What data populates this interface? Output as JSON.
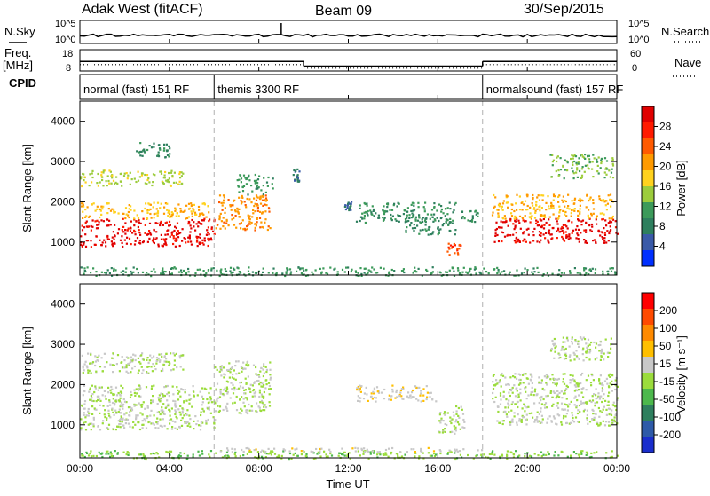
{
  "header": {
    "radar": "Adak West (fitACF)",
    "beam": "Beam 09",
    "date": "30/Sep/2015"
  },
  "side_labels": {
    "nsky": "N.Sky",
    "nsearch": "N.Search",
    "freq": "Freq.",
    "mhz": "[MHz]",
    "nave": "Nave",
    "cpid": "CPID"
  },
  "small_ticks": {
    "noise_left": [
      "10^5",
      "10^0"
    ],
    "noise_right": [
      "10^5",
      "10^0"
    ],
    "freq_left": [
      "18",
      "8"
    ],
    "freq_right": [
      "60",
      "0"
    ]
  },
  "modes": [
    {
      "label": "normal (fast) 151 RF",
      "start": 0,
      "end": 6
    },
    {
      "label": "themis 3300 RF",
      "start": 6,
      "end": 18
    },
    {
      "label": "normalsound (fast) 157 RF",
      "start": 18,
      "end": 24
    }
  ],
  "x_axis": {
    "label": "Time UT",
    "ticks": [
      "00:00",
      "04:00",
      "08:00",
      "12:00",
      "16:00",
      "20:00",
      "00:00"
    ],
    "range": [
      0,
      24
    ]
  },
  "chart_data": [
    {
      "type": "heatmap",
      "name": "power",
      "ylabel": "Slant Range [km]",
      "ylim": [
        180,
        4500
      ],
      "yticks": [
        "1000",
        "2000",
        "3000",
        "4000"
      ],
      "colorbar": {
        "label": "Power [dB]",
        "ticks": [
          "4",
          "8",
          "12",
          "16",
          "20",
          "24",
          "28"
        ],
        "range": [
          0,
          30
        ],
        "colors": [
          "#0030ff",
          "#3a5aa8",
          "#2e7f5e",
          "#3c9a5a",
          "#9ccc3c",
          "#ffd21e",
          "#ff9a00",
          "#ff5a00",
          "#ff1a00",
          "#e00000"
        ]
      },
      "regions": [
        {
          "t0": 0.0,
          "t1": 6.0,
          "r0": 900,
          "r1": 1600,
          "value": 28
        },
        {
          "t0": 0.0,
          "t1": 5.8,
          "r0": 1600,
          "r1": 2000,
          "value": 18
        },
        {
          "t0": 0.0,
          "t1": 4.6,
          "r0": 2400,
          "r1": 2800,
          "value": 14
        },
        {
          "t0": 2.5,
          "t1": 4.0,
          "r0": 3100,
          "r1": 3500,
          "value": 8
        },
        {
          "t0": 6.0,
          "t1": 8.5,
          "r0": 1300,
          "r1": 2200,
          "value": 20
        },
        {
          "t0": 7.0,
          "t1": 8.6,
          "r0": 2200,
          "r1": 2700,
          "value": 10
        },
        {
          "t0": 9.5,
          "t1": 9.8,
          "r0": 2500,
          "r1": 2850,
          "value": 6
        },
        {
          "t0": 11.8,
          "t1": 12.1,
          "r0": 1800,
          "r1": 2050,
          "value": 6
        },
        {
          "t0": 12.3,
          "t1": 16.8,
          "r0": 1500,
          "r1": 2000,
          "value": 9
        },
        {
          "t0": 14.5,
          "t1": 16.8,
          "r0": 1200,
          "r1": 1650,
          "value": 8
        },
        {
          "t0": 16.4,
          "t1": 17.0,
          "r0": 650,
          "r1": 1050,
          "value": 24
        },
        {
          "t0": 17.0,
          "t1": 17.8,
          "r0": 1500,
          "r1": 1800,
          "value": 9
        },
        {
          "t0": 18.4,
          "t1": 24.0,
          "r0": 1000,
          "r1": 1600,
          "value": 28
        },
        {
          "t0": 18.4,
          "t1": 23.8,
          "r0": 1600,
          "r1": 2200,
          "value": 18
        },
        {
          "t0": 21.0,
          "t1": 23.8,
          "r0": 2600,
          "r1": 3200,
          "value": 12
        },
        {
          "t0": 0.0,
          "t1": 24.0,
          "r0": 180,
          "r1": 400,
          "value": 10
        }
      ]
    },
    {
      "type": "heatmap",
      "name": "velocity",
      "ylabel": "Slant Range [km]",
      "ylim": [
        180,
        4500
      ],
      "yticks": [
        "1000",
        "2000",
        "3000",
        "4000"
      ],
      "colorbar": {
        "label": "Velocity [m s⁻¹]",
        "ticks": [
          "200",
          "100",
          "50",
          "15",
          "-15",
          "-50",
          "-100",
          "-200"
        ],
        "range": [
          -250,
          250
        ],
        "colors": [
          "#1a2ecc",
          "#2e5aa8",
          "#2e7f5e",
          "#4cb84c",
          "#9bdc3c",
          "#c8c8c8",
          "#ffbf00",
          "#ff8a00",
          "#ff4a00",
          "#ff0000"
        ]
      },
      "regions": [
        {
          "t0": 0.0,
          "t1": 6.0,
          "r0": 900,
          "r1": 2000,
          "value": 0
        },
        {
          "t0": 0.0,
          "t1": 4.6,
          "r0": 2300,
          "r1": 2800,
          "value": 0
        },
        {
          "t0": 6.0,
          "t1": 8.5,
          "r0": 1300,
          "r1": 2600,
          "value": 0
        },
        {
          "t0": 12.3,
          "t1": 16.0,
          "r0": 1600,
          "r1": 2000,
          "value": 40
        },
        {
          "t0": 16.0,
          "t1": 17.2,
          "r0": 800,
          "r1": 1500,
          "value": 0
        },
        {
          "t0": 18.4,
          "t1": 24.0,
          "r0": 1000,
          "r1": 2300,
          "value": 0
        },
        {
          "t0": 21.0,
          "t1": 23.8,
          "r0": 2600,
          "r1": 3200,
          "value": 0
        },
        {
          "t0": 0.0,
          "t1": 24.0,
          "r0": 180,
          "r1": 380,
          "value": -40
        },
        {
          "t0": 6.0,
          "t1": 18.0,
          "r0": 350,
          "r1": 450,
          "value": 30
        }
      ]
    }
  ],
  "frequency_trace": {
    "segments": [
      {
        "t0": 0,
        "t1": 10,
        "freq": 12.5
      },
      {
        "t0": 10,
        "t1": 18,
        "freq": 10.3
      },
      {
        "t0": 18,
        "t1": 24,
        "freq": 12.5
      }
    ],
    "nave": [
      {
        "t0": 0,
        "t1": 10,
        "value": 18
      },
      {
        "t0": 10,
        "t1": 18,
        "value": 8
      },
      {
        "t0": 18,
        "t1": 24,
        "value": 18
      }
    ]
  },
  "colors": {
    "frame": "#000000",
    "dashed_divider": "#b0b0b0"
  }
}
